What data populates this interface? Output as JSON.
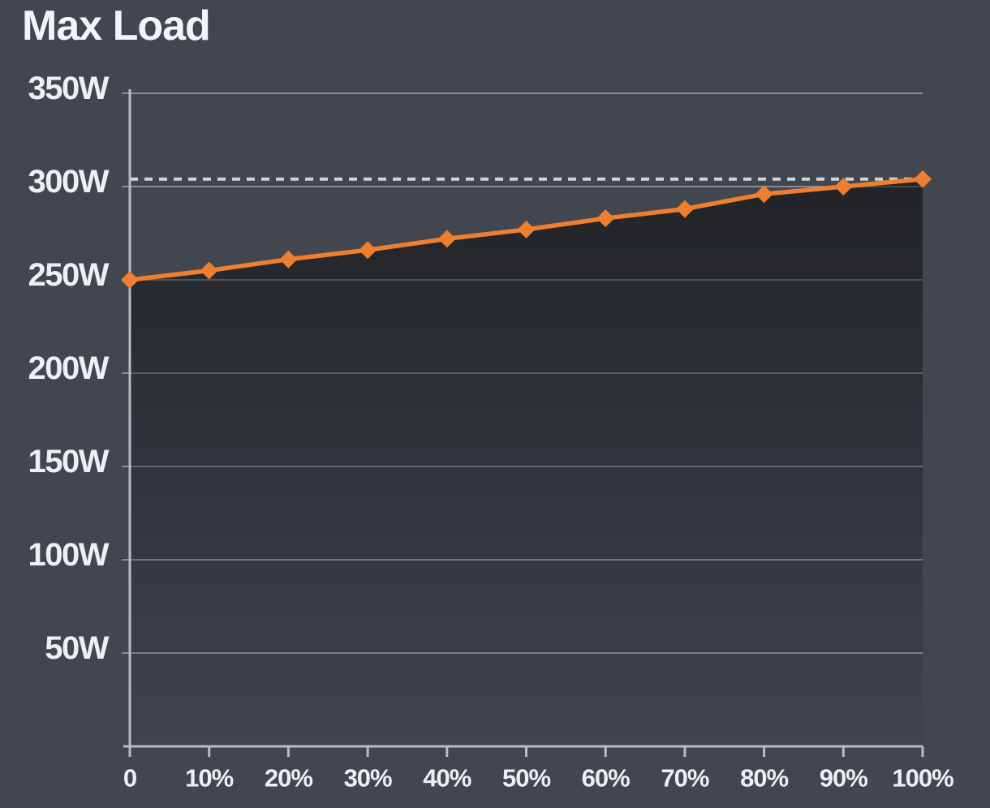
{
  "title": "Max Load",
  "chart_data": {
    "type": "line",
    "title": "Max Load",
    "x": [
      0,
      10,
      20,
      30,
      40,
      50,
      60,
      70,
      80,
      90,
      100
    ],
    "x_tick_labels": [
      "0",
      "10%",
      "20%",
      "30%",
      "40%",
      "50%",
      "60%",
      "70%",
      "80%",
      "90%",
      "100%"
    ],
    "series": [
      {
        "name": "Max Load (W)",
        "values": [
          250,
          255,
          261,
          266,
          272,
          277,
          283,
          288,
          296,
          300,
          304
        ],
        "color": "#ef7e2e",
        "marker": "diamond"
      }
    ],
    "reference_line": {
      "value": 304,
      "style": "dashed",
      "color": "#ced3d9"
    },
    "xlabel": "",
    "ylabel": "",
    "ylim": [
      0,
      350
    ],
    "y_ticks": [
      50,
      100,
      150,
      200,
      250,
      300,
      350
    ],
    "y_tick_labels": [
      "50W",
      "100W",
      "150W",
      "200W",
      "250W",
      "300W",
      "350W"
    ],
    "grid": true,
    "legend": false,
    "area_fill": "dark-gradient-under-line",
    "background": "#42464e"
  },
  "colors": {
    "background": "#42464e",
    "series_orange": "#ef7e2e",
    "gridline": "#949aa4",
    "axis": "#b7bdc5",
    "dashed_reference": "#ced3d9",
    "text": "#edf0f3",
    "title_text": "#f2f5f7"
  }
}
